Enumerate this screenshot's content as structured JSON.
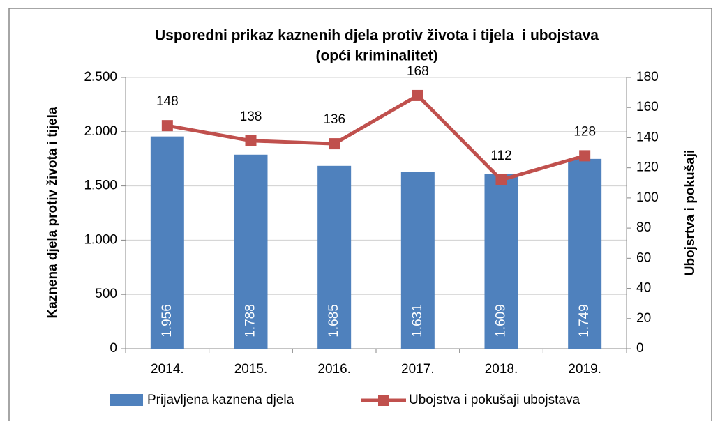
{
  "chart_data": {
    "type": "bar",
    "title": [
      "Usporedni prikaz kaznenih djela protiv života i tijela  i ubojstava",
      "(opći kriminalitet)"
    ],
    "y_label": "Kaznena djela protiv života i tijela",
    "y2_label": "Ubojsrtva i pokušaji",
    "categories": [
      "2014.",
      "2015.",
      "2016.",
      "2017.",
      "2018.",
      "2019."
    ],
    "series": [
      {
        "name": "Prijavljena kaznena djela",
        "type": "bar",
        "color": "#4f81bd",
        "values": [
          1956,
          1788,
          1685,
          1631,
          1609,
          1749
        ],
        "value_labels": [
          "1.956",
          "1.788",
          "1.685",
          "1.631",
          "1.609",
          "1.749"
        ]
      },
      {
        "name": "Ubojstva i pokušaji ubojstava",
        "type": "line",
        "axis": "y2",
        "color": "#c0504d",
        "values": [
          148,
          138,
          136,
          168,
          112,
          128
        ]
      }
    ],
    "ylim": [
      0,
      2500
    ],
    "yticks": [
      0,
      500,
      {
        "value": 1000,
        "label": "1.000"
      },
      {
        "value": 1500,
        "label": "1.500"
      },
      {
        "value": 2000,
        "label": "2.000"
      },
      {
        "value": 2500,
        "label": "2.500"
      }
    ],
    "y2lim": [
      0,
      180
    ],
    "y2ticks": [
      0,
      20,
      40,
      60,
      80,
      100,
      120,
      140,
      160,
      180
    ],
    "grid": true,
    "legend": "bottom"
  }
}
